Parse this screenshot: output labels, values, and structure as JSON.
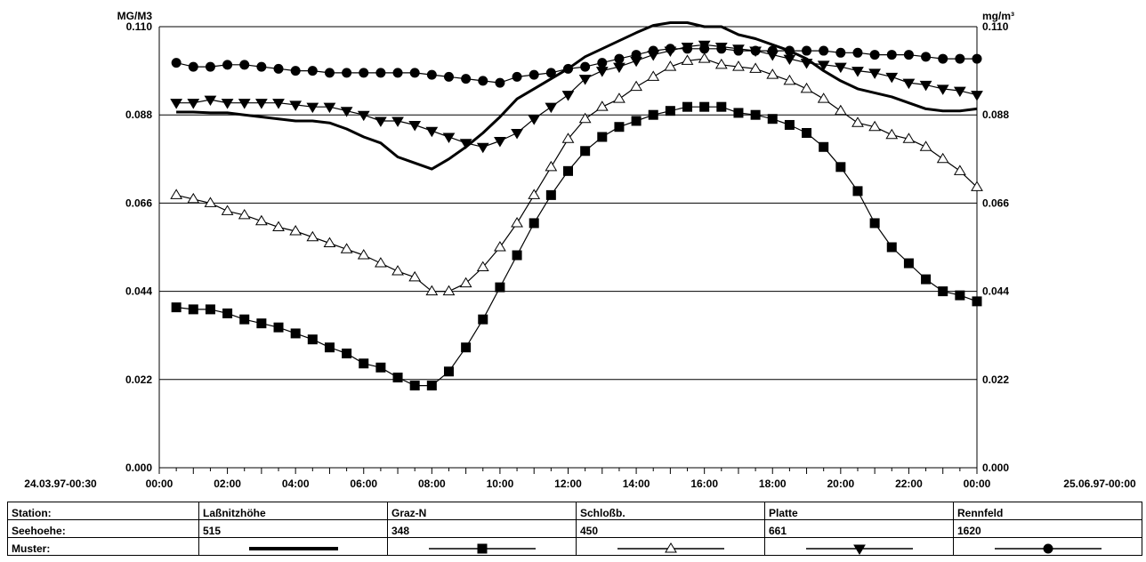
{
  "chart_data": {
    "type": "line",
    "left_unit": "MG/M3",
    "right_unit": "mg/m³",
    "ylim": [
      0,
      0.11
    ],
    "y_ticks": [
      "0.000",
      "0.022",
      "0.044",
      "0.066",
      "0.088",
      "0.110"
    ],
    "start_label": "24.03.97-00:30",
    "end_label": "25.06.97-00:00",
    "x_ticks": [
      "00:00",
      "02:00",
      "04:00",
      "06:00",
      "08:00",
      "10:00",
      "12:00",
      "14:00",
      "16:00",
      "18:00",
      "20:00",
      "22:00",
      "00:00"
    ],
    "grid": true,
    "x": [
      0.5,
      1,
      1.5,
      2,
      2.5,
      3,
      3.5,
      4,
      4.5,
      5,
      5.5,
      6,
      6.5,
      7,
      7.5,
      8,
      8.5,
      9,
      9.5,
      10,
      10.5,
      11,
      11.5,
      12,
      12.5,
      13,
      13.5,
      14,
      14.5,
      15,
      15.5,
      16,
      16.5,
      17,
      17.5,
      18,
      18.5,
      19,
      19.5,
      20,
      20.5,
      21,
      21.5,
      22,
      22.5,
      23,
      23.5,
      24
    ],
    "series": [
      {
        "name": "Laßnitzhöhe",
        "marker": "none",
        "values": [
          0.0887,
          0.0887,
          0.0885,
          0.0885,
          0.088,
          0.0875,
          0.087,
          0.0865,
          0.0865,
          0.086,
          0.0845,
          0.0825,
          0.081,
          0.0775,
          0.076,
          0.0745,
          0.077,
          0.08,
          0.0835,
          0.0875,
          0.092,
          0.0945,
          0.097,
          0.0995,
          0.1025,
          0.1045,
          0.1065,
          0.1085,
          0.1103,
          0.111,
          0.111,
          0.11,
          0.11,
          0.108,
          0.107,
          0.1055,
          0.104,
          0.102,
          0.099,
          0.0965,
          0.0945,
          0.0935,
          0.0925,
          0.091,
          0.0895,
          0.089,
          0.089,
          0.0895
        ]
      },
      {
        "name": "Graz-N",
        "marker": "square",
        "values": [
          0.04,
          0.0395,
          0.0395,
          0.0385,
          0.037,
          0.036,
          0.035,
          0.0335,
          0.032,
          0.03,
          0.0285,
          0.026,
          0.025,
          0.0225,
          0.0205,
          0.0205,
          0.024,
          0.03,
          0.037,
          0.045,
          0.053,
          0.061,
          0.068,
          0.074,
          0.079,
          0.0825,
          0.085,
          0.0865,
          0.088,
          0.089,
          0.09,
          0.09,
          0.09,
          0.0885,
          0.088,
          0.087,
          0.0855,
          0.0835,
          0.08,
          0.075,
          0.069,
          0.061,
          0.055,
          0.051,
          0.047,
          0.044,
          0.043,
          0.0415
        ]
      },
      {
        "name": "Schloßb.",
        "marker": "triangle-up",
        "values": [
          0.068,
          0.067,
          0.066,
          0.064,
          0.063,
          0.0615,
          0.06,
          0.059,
          0.0575,
          0.056,
          0.0545,
          0.053,
          0.051,
          0.049,
          0.0475,
          0.044,
          0.044,
          0.046,
          0.05,
          0.055,
          0.061,
          0.068,
          0.075,
          0.082,
          0.087,
          0.09,
          0.092,
          0.095,
          0.0975,
          0.1,
          0.1015,
          0.102,
          0.1005,
          0.1,
          0.0995,
          0.098,
          0.0965,
          0.0945,
          0.092,
          0.089,
          0.086,
          0.085,
          0.083,
          0.082,
          0.08,
          0.077,
          0.074,
          0.07
        ]
      },
      {
        "name": "Platte",
        "marker": "triangle-down",
        "values": [
          0.091,
          0.091,
          0.0918,
          0.091,
          0.091,
          0.091,
          0.091,
          0.0905,
          0.09,
          0.09,
          0.089,
          0.088,
          0.0865,
          0.0865,
          0.0855,
          0.084,
          0.0825,
          0.081,
          0.08,
          0.0815,
          0.0835,
          0.087,
          0.09,
          0.093,
          0.097,
          0.099,
          0.1,
          0.1015,
          0.103,
          0.104,
          0.105,
          0.1055,
          0.105,
          0.1045,
          0.104,
          0.103,
          0.102,
          0.101,
          0.1005,
          0.1,
          0.099,
          0.0985,
          0.0975,
          0.096,
          0.0955,
          0.0945,
          0.094,
          0.093
        ]
      },
      {
        "name": "Rennfeld",
        "marker": "circle",
        "values": [
          0.101,
          0.1,
          0.1,
          0.1005,
          0.1005,
          0.1,
          0.0995,
          0.099,
          0.099,
          0.0985,
          0.0985,
          0.0985,
          0.0985,
          0.0985,
          0.0985,
          0.098,
          0.0975,
          0.097,
          0.0965,
          0.096,
          0.0975,
          0.098,
          0.0985,
          0.0995,
          0.1,
          0.101,
          0.102,
          0.103,
          0.104,
          0.1045,
          0.1045,
          0.1045,
          0.1045,
          0.104,
          0.104,
          0.104,
          0.104,
          0.104,
          0.104,
          0.1035,
          0.1035,
          0.103,
          0.103,
          0.103,
          0.1025,
          0.102,
          0.102,
          0.102
        ]
      }
    ]
  },
  "legend": {
    "station_label": "Station:",
    "height_label": "Seehoehe:",
    "pattern_label": "Muster:",
    "stations": [
      {
        "name": "Laßnitzhöhe",
        "height": "515",
        "marker": "none"
      },
      {
        "name": "Graz-N",
        "height": "348",
        "marker": "square"
      },
      {
        "name": "Schloßb.",
        "height": "450",
        "marker": "triangle-up"
      },
      {
        "name": "Platte",
        "height": "661",
        "marker": "triangle-down"
      },
      {
        "name": "Rennfeld",
        "height": "1620",
        "marker": "circle"
      }
    ]
  }
}
